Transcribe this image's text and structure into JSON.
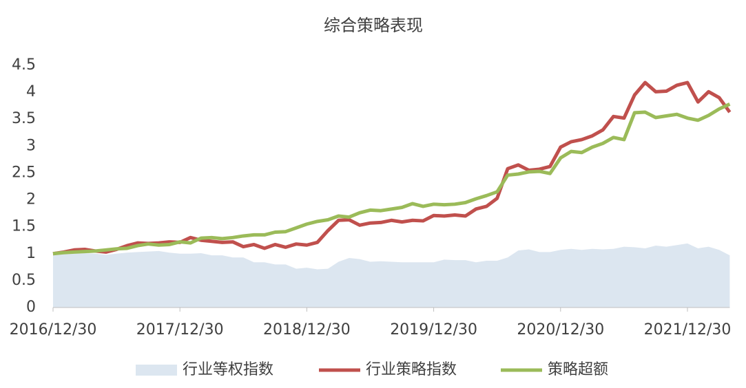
{
  "chart_data": {
    "type": "line",
    "title": "综合策略表现",
    "categories": [
      "2016/12/30",
      null,
      null,
      null,
      null,
      null,
      null,
      null,
      null,
      null,
      null,
      null,
      "2017/12/30",
      null,
      null,
      null,
      null,
      null,
      null,
      null,
      null,
      null,
      null,
      null,
      "2018/12/30",
      null,
      null,
      null,
      null,
      null,
      null,
      null,
      null,
      null,
      null,
      null,
      "2019/12/30",
      null,
      null,
      null,
      null,
      null,
      null,
      null,
      null,
      null,
      null,
      null,
      "2020/12/30",
      null,
      null,
      null,
      null,
      null,
      null,
      null,
      null,
      null,
      null,
      null,
      "2021/12/30",
      null,
      null,
      null,
      null
    ],
    "series": [
      {
        "name": "行业等权指数",
        "type": "area",
        "color": "#dce6f0",
        "values": [
          0.98,
          0.99,
          1.0,
          1.01,
          1.0,
          0.98,
          1.0,
          1.02,
          1.03,
          1.04,
          1.05,
          1.02,
          1.0,
          1.0,
          1.01,
          0.97,
          0.97,
          0.93,
          0.93,
          0.84,
          0.84,
          0.8,
          0.8,
          0.72,
          0.74,
          0.71,
          0.72,
          0.85,
          0.92,
          0.9,
          0.85,
          0.86,
          0.85,
          0.84,
          0.84,
          0.84,
          0.84,
          0.89,
          0.88,
          0.88,
          0.84,
          0.87,
          0.87,
          0.93,
          1.06,
          1.08,
          1.03,
          1.03,
          1.07,
          1.09,
          1.07,
          1.09,
          1.08,
          1.09,
          1.13,
          1.12,
          1.1,
          1.15,
          1.13,
          1.16,
          1.19,
          1.1,
          1.13,
          1.07,
          0.97
        ]
      },
      {
        "name": "行业策略指数",
        "type": "line",
        "color": "#c0504d",
        "values": [
          1.0,
          1.03,
          1.07,
          1.08,
          1.05,
          1.03,
          1.08,
          1.15,
          1.2,
          1.19,
          1.2,
          1.22,
          1.21,
          1.3,
          1.25,
          1.23,
          1.21,
          1.22,
          1.13,
          1.17,
          1.1,
          1.17,
          1.12,
          1.18,
          1.16,
          1.21,
          1.43,
          1.62,
          1.63,
          1.53,
          1.57,
          1.58,
          1.62,
          1.59,
          1.62,
          1.61,
          1.71,
          1.7,
          1.72,
          1.7,
          1.83,
          1.88,
          2.03,
          2.58,
          2.65,
          2.55,
          2.57,
          2.62,
          2.98,
          3.08,
          3.12,
          3.19,
          3.3,
          3.55,
          3.52,
          3.95,
          4.18,
          4.01,
          4.02,
          4.13,
          4.18,
          3.82,
          4.01,
          3.9,
          3.63
        ]
      },
      {
        "name": "策略超额",
        "type": "line",
        "color": "#9bbb59",
        "values": [
          1.0,
          1.02,
          1.03,
          1.04,
          1.05,
          1.07,
          1.09,
          1.1,
          1.15,
          1.18,
          1.16,
          1.17,
          1.22,
          1.2,
          1.29,
          1.3,
          1.28,
          1.3,
          1.33,
          1.35,
          1.35,
          1.4,
          1.41,
          1.48,
          1.55,
          1.6,
          1.63,
          1.7,
          1.68,
          1.76,
          1.81,
          1.8,
          1.83,
          1.86,
          1.93,
          1.88,
          1.92,
          1.91,
          1.92,
          1.95,
          2.02,
          2.08,
          2.15,
          2.46,
          2.48,
          2.52,
          2.53,
          2.49,
          2.78,
          2.9,
          2.88,
          2.98,
          3.05,
          3.16,
          3.12,
          3.62,
          3.63,
          3.53,
          3.56,
          3.59,
          3.52,
          3.48,
          3.57,
          3.69,
          3.78
        ]
      }
    ],
    "ylim": [
      0,
      4.5
    ],
    "yticks": [
      0,
      0.5,
      1,
      1.5,
      2,
      2.5,
      3,
      3.5,
      4,
      4.5
    ],
    "grid": false,
    "legend": "bottom"
  }
}
